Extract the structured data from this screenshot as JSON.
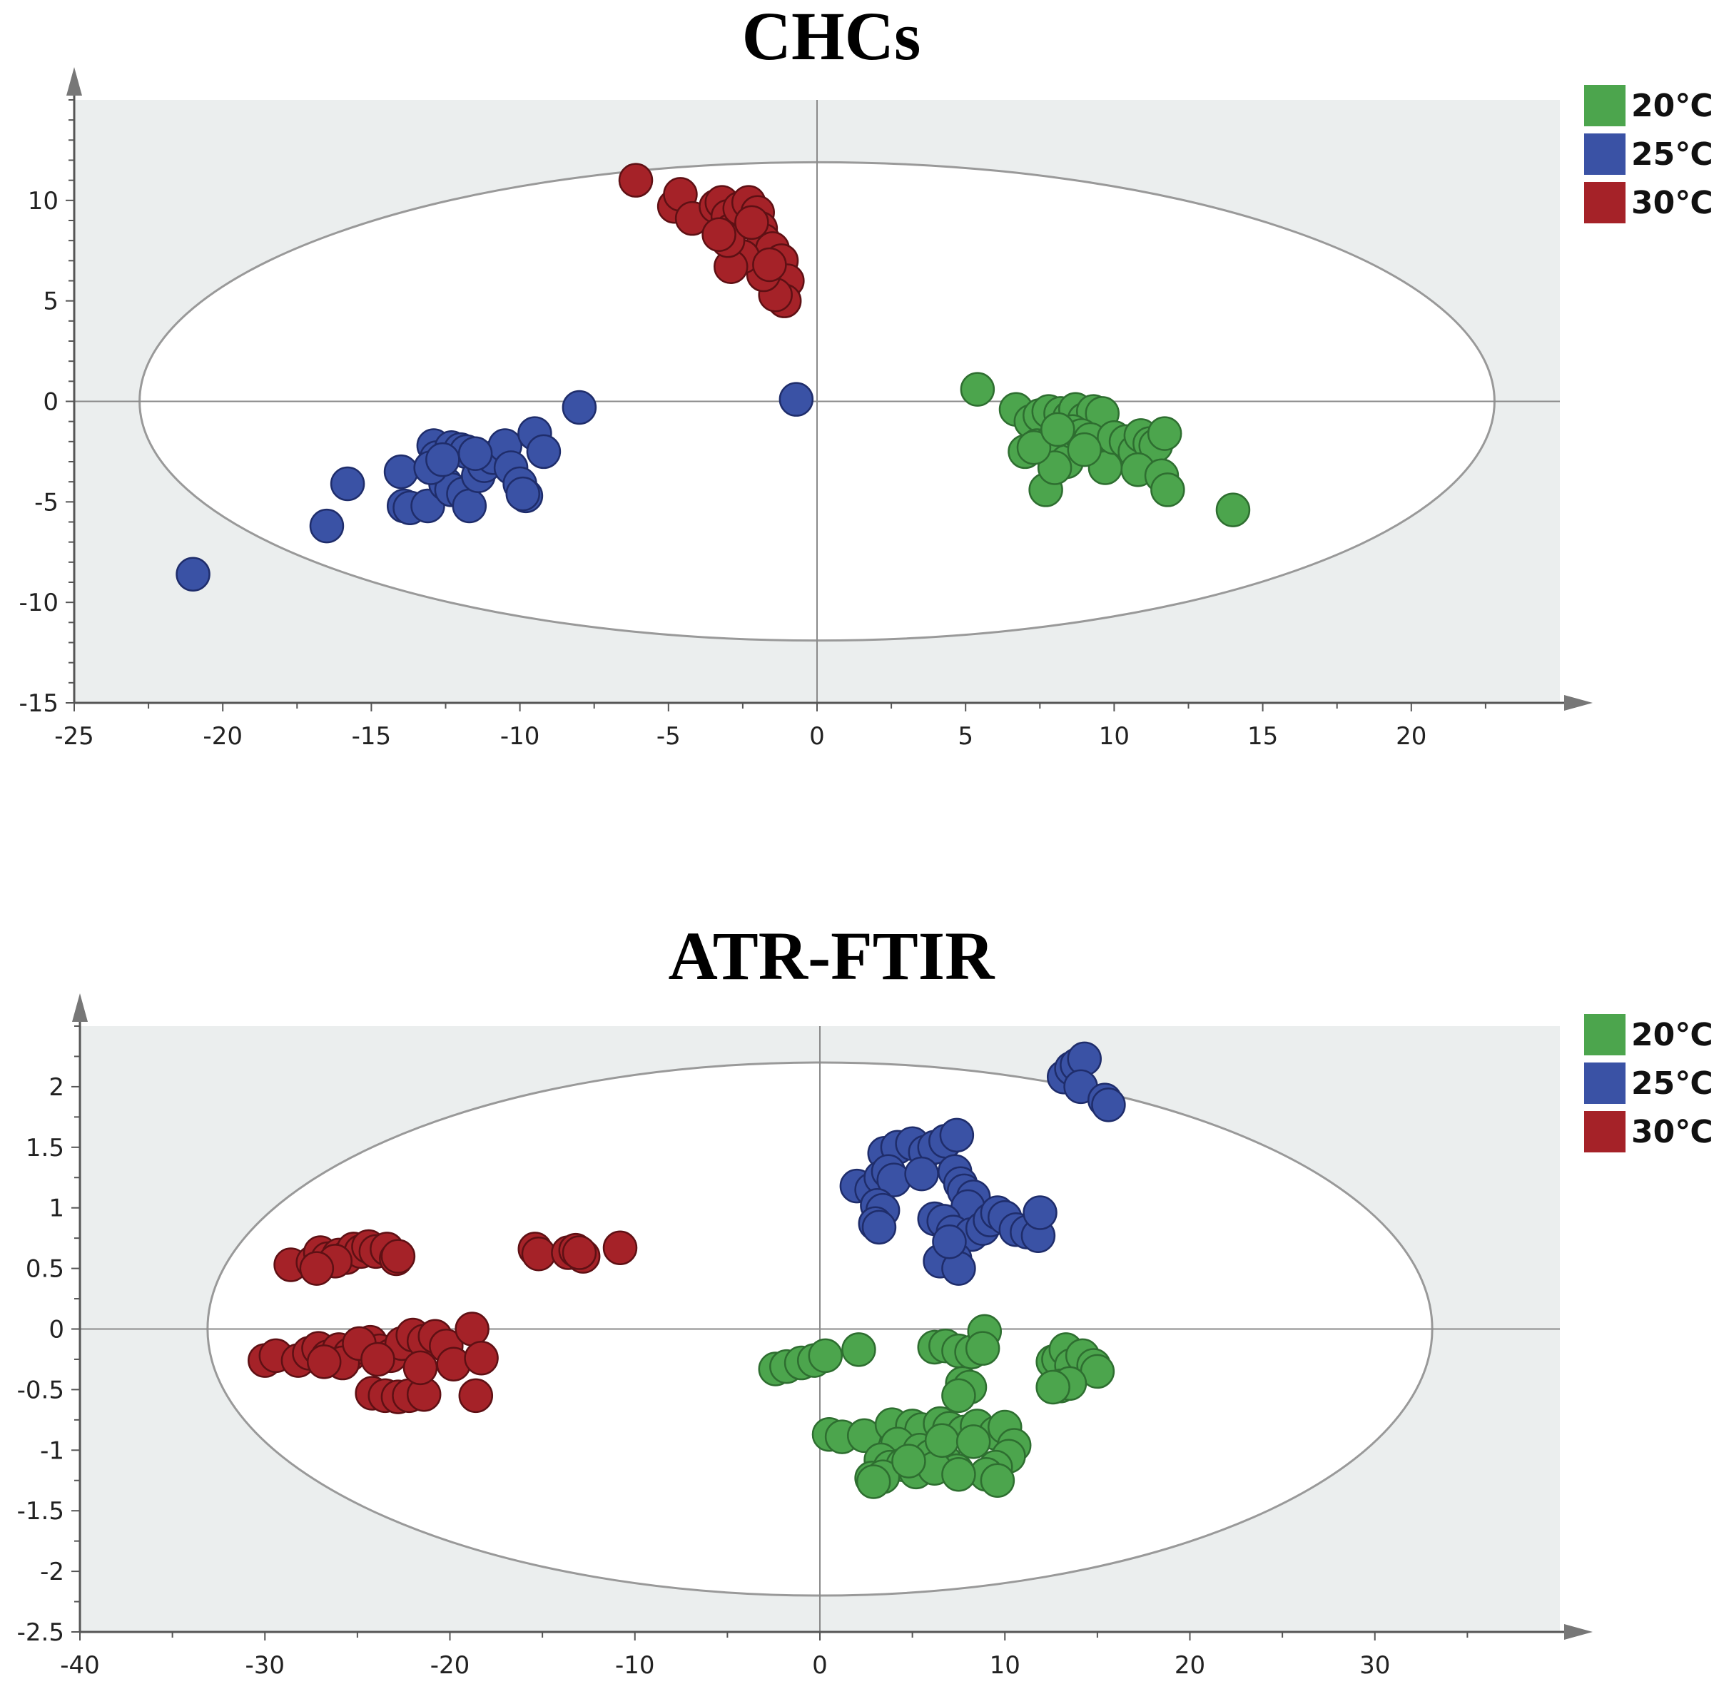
{
  "chart_data": [
    {
      "type": "scatter",
      "title": "CHCs",
      "xlabel": "",
      "ylabel": "",
      "xlim": [
        -25,
        25
      ],
      "ylim": [
        -15,
        15
      ],
      "xticks": [
        -25,
        -20,
        -15,
        -10,
        -5,
        0,
        5,
        10,
        15,
        20
      ],
      "yticks": [
        -15,
        -10,
        -5,
        0,
        5,
        10
      ],
      "ellipse": {
        "rx": 22.8,
        "ry": 11.9
      },
      "grid": false,
      "legend_position": "top-right",
      "series": [
        {
          "name": "20℃",
          "color": "#4ca54d",
          "points": [
            [
              5.4,
              0.6
            ],
            [
              6.7,
              -0.4
            ],
            [
              7.2,
              -1.0
            ],
            [
              7.5,
              -0.7
            ],
            [
              7.8,
              -0.5
            ],
            [
              8.2,
              -0.6
            ],
            [
              8.5,
              -0.8
            ],
            [
              8.7,
              -0.4
            ],
            [
              9.0,
              -0.9
            ],
            [
              9.3,
              -0.5
            ],
            [
              9.6,
              -0.6
            ],
            [
              7.0,
              -2.5
            ],
            [
              7.4,
              -2.2
            ],
            [
              7.9,
              -2.0
            ],
            [
              8.2,
              -2.6
            ],
            [
              8.4,
              -3.0
            ],
            [
              8.6,
              -1.5
            ],
            [
              8.9,
              -1.7
            ],
            [
              9.2,
              -1.9
            ],
            [
              9.7,
              -3.3
            ],
            [
              10.0,
              -1.8
            ],
            [
              10.4,
              -2.0
            ],
            [
              10.7,
              -2.5
            ],
            [
              10.9,
              -1.7
            ],
            [
              11.2,
              -2.1
            ],
            [
              11.4,
              -2.2
            ],
            [
              11.7,
              -1.6
            ],
            [
              10.8,
              -3.4
            ],
            [
              11.6,
              -3.7
            ],
            [
              11.8,
              -4.4
            ],
            [
              7.7,
              -4.4
            ],
            [
              14.0,
              -5.4
            ],
            [
              8.0,
              -3.3
            ],
            [
              9.0,
              -2.4
            ],
            [
              7.3,
              -2.3
            ],
            [
              8.1,
              -1.4
            ]
          ]
        },
        {
          "name": "25℃",
          "color": "#3a52a5",
          "points": [
            [
              -21.0,
              -8.6
            ],
            [
              -16.5,
              -6.2
            ],
            [
              -15.8,
              -4.1
            ],
            [
              -14.0,
              -3.5
            ],
            [
              -13.9,
              -5.2
            ],
            [
              -13.7,
              -5.3
            ],
            [
              -13.1,
              -5.2
            ],
            [
              -12.5,
              -4.1
            ],
            [
              -12.3,
              -4.4
            ],
            [
              -11.9,
              -4.6
            ],
            [
              -11.7,
              -5.2
            ],
            [
              -12.9,
              -2.2
            ],
            [
              -12.8,
              -2.8
            ],
            [
              -12.3,
              -2.3
            ],
            [
              -12.0,
              -2.4
            ],
            [
              -11.8,
              -2.5
            ],
            [
              -11.4,
              -3.7
            ],
            [
              -11.2,
              -3.2
            ],
            [
              -10.9,
              -2.8
            ],
            [
              -10.5,
              -2.2
            ],
            [
              -10.3,
              -3.3
            ],
            [
              -10.0,
              -4.1
            ],
            [
              -9.8,
              -4.7
            ],
            [
              -9.9,
              -4.6
            ],
            [
              -9.5,
              -1.6
            ],
            [
              -9.2,
              -2.5
            ],
            [
              -8.0,
              -0.3
            ],
            [
              -0.7,
              0.1
            ],
            [
              -13.0,
              -3.3
            ],
            [
              -11.5,
              -2.6
            ],
            [
              -12.6,
              -2.9
            ]
          ]
        },
        {
          "name": "30℃",
          "color": "#a52228",
          "points": [
            [
              -6.1,
              11.0
            ],
            [
              -4.8,
              9.7
            ],
            [
              -4.6,
              10.3
            ],
            [
              -4.2,
              9.1
            ],
            [
              -3.4,
              9.7
            ],
            [
              -3.2,
              9.9
            ],
            [
              -3.0,
              9.2
            ],
            [
              -2.9,
              8.5
            ],
            [
              -2.6,
              9.6
            ],
            [
              -2.3,
              9.9
            ],
            [
              -2.0,
              9.4
            ],
            [
              -1.9,
              8.6
            ],
            [
              -1.8,
              8.0
            ],
            [
              -1.5,
              7.6
            ],
            [
              -1.2,
              7.0
            ],
            [
              -1.0,
              6.0
            ],
            [
              -1.1,
              5.0
            ],
            [
              -1.4,
              5.3
            ],
            [
              -1.8,
              6.3
            ],
            [
              -2.5,
              7.2
            ],
            [
              -2.9,
              6.7
            ],
            [
              -3.0,
              8.0
            ],
            [
              -3.3,
              8.3
            ],
            [
              -2.2,
              8.9
            ],
            [
              -1.6,
              6.8
            ]
          ]
        }
      ]
    },
    {
      "type": "scatter",
      "title": "ATR-FTIR",
      "xlabel": "",
      "ylabel": "",
      "xlim": [
        -40,
        40
      ],
      "ylim": [
        -2.5,
        2.5
      ],
      "xticks": [
        -40,
        -30,
        -20,
        -10,
        0,
        10,
        20,
        30
      ],
      "yticks": [
        -2.5,
        -2,
        -1.5,
        -1,
        -0.5,
        0,
        0.5,
        1,
        1.5,
        2
      ],
      "ellipse": {
        "rx": 33.1,
        "ry": 2.2
      },
      "grid": false,
      "legend_position": "top-right",
      "series": [
        {
          "name": "20℃",
          "color": "#4ca54d",
          "points": [
            [
              -2.4,
              -0.33
            ],
            [
              -1.8,
              -0.31
            ],
            [
              -1.0,
              -0.28
            ],
            [
              -0.3,
              -0.26
            ],
            [
              0.3,
              -0.22
            ],
            [
              2.1,
              -0.17
            ],
            [
              6.2,
              -0.15
            ],
            [
              6.8,
              -0.14
            ],
            [
              7.5,
              -0.18
            ],
            [
              8.2,
              -0.19
            ],
            [
              8.9,
              -0.02
            ],
            [
              8.8,
              -0.16
            ],
            [
              7.7,
              -0.45
            ],
            [
              8.1,
              -0.48
            ],
            [
              7.5,
              -0.55
            ],
            [
              12.6,
              -0.27
            ],
            [
              12.9,
              -0.25
            ],
            [
              13.3,
              -0.17
            ],
            [
              13.6,
              -0.3
            ],
            [
              14.2,
              -0.22
            ],
            [
              14.8,
              -0.3
            ],
            [
              15.0,
              -0.35
            ],
            [
              13.0,
              -0.47
            ],
            [
              13.5,
              -0.45
            ],
            [
              12.6,
              -0.48
            ],
            [
              0.5,
              -0.87
            ],
            [
              1.2,
              -0.89
            ],
            [
              2.4,
              -0.88
            ],
            [
              3.9,
              -0.79
            ],
            [
              5.0,
              -0.8
            ],
            [
              5.5,
              -0.83
            ],
            [
              6.5,
              -0.78
            ],
            [
              7.0,
              -0.82
            ],
            [
              7.8,
              -0.85
            ],
            [
              8.5,
              -0.8
            ],
            [
              9.5,
              -0.86
            ],
            [
              10.0,
              -0.81
            ],
            [
              10.5,
              -0.96
            ],
            [
              10.2,
              -1.05
            ],
            [
              9.5,
              -1.14
            ],
            [
              9.0,
              -1.2
            ],
            [
              9.6,
              -1.25
            ],
            [
              4.2,
              -0.95
            ],
            [
              5.4,
              -1.0
            ],
            [
              6.0,
              -1.05
            ],
            [
              6.8,
              -1.1
            ],
            [
              7.4,
              -1.17
            ],
            [
              3.3,
              -1.08
            ],
            [
              3.8,
              -1.14
            ],
            [
              4.5,
              -1.12
            ],
            [
              5.2,
              -1.18
            ],
            [
              2.8,
              -1.23
            ],
            [
              3.4,
              -1.22
            ],
            [
              6.2,
              -1.15
            ],
            [
              7.5,
              -1.2
            ],
            [
              2.9,
              -1.26
            ],
            [
              4.8,
              -1.09
            ],
            [
              6.6,
              -0.92
            ],
            [
              8.3,
              -0.93
            ]
          ]
        },
        {
          "name": "25℃",
          "color": "#3a52a5",
          "points": [
            [
              13.2,
              2.08
            ],
            [
              13.6,
              2.15
            ],
            [
              13.9,
              2.18
            ],
            [
              14.3,
              2.23
            ],
            [
              14.1,
              2.0
            ],
            [
              15.4,
              1.89
            ],
            [
              15.6,
              1.85
            ],
            [
              3.5,
              1.45
            ],
            [
              4.2,
              1.5
            ],
            [
              5.0,
              1.53
            ],
            [
              5.7,
              1.46
            ],
            [
              6.2,
              1.5
            ],
            [
              6.8,
              1.55
            ],
            [
              7.4,
              1.6
            ],
            [
              7.3,
              1.3
            ],
            [
              7.6,
              1.2
            ],
            [
              7.8,
              1.14
            ],
            [
              8.3,
              1.09
            ],
            [
              8.0,
              1.01
            ],
            [
              2.0,
              1.18
            ],
            [
              2.8,
              1.15
            ],
            [
              3.3,
              1.25
            ],
            [
              3.7,
              1.3
            ],
            [
              4.0,
              1.23
            ],
            [
              5.5,
              1.28
            ],
            [
              3.1,
              1.02
            ],
            [
              3.4,
              0.98
            ],
            [
              3.0,
              0.87
            ],
            [
              3.2,
              0.84
            ],
            [
              6.2,
              0.91
            ],
            [
              6.7,
              0.89
            ],
            [
              7.2,
              0.8
            ],
            [
              8.2,
              0.78
            ],
            [
              8.8,
              0.83
            ],
            [
              9.2,
              0.9
            ],
            [
              9.6,
              0.96
            ],
            [
              10.0,
              0.92
            ],
            [
              10.6,
              0.82
            ],
            [
              11.2,
              0.8
            ],
            [
              11.8,
              0.77
            ],
            [
              11.9,
              0.96
            ],
            [
              7.0,
              0.62
            ],
            [
              7.3,
              0.58
            ],
            [
              6.5,
              0.56
            ],
            [
              7.5,
              0.5
            ],
            [
              7.0,
              0.72
            ]
          ]
        },
        {
          "name": "30℃",
          "color": "#a52228",
          "points": [
            [
              -28.6,
              0.53
            ],
            [
              -27.4,
              0.55
            ],
            [
              -27.0,
              0.63
            ],
            [
              -26.6,
              0.58
            ],
            [
              -26.0,
              0.61
            ],
            [
              -25.6,
              0.59
            ],
            [
              -25.2,
              0.66
            ],
            [
              -24.8,
              0.64
            ],
            [
              -24.4,
              0.68
            ],
            [
              -24.0,
              0.64
            ],
            [
              -23.4,
              0.66
            ],
            [
              -22.9,
              0.58
            ],
            [
              -22.8,
              0.6
            ],
            [
              -26.2,
              0.56
            ],
            [
              -27.2,
              0.5
            ],
            [
              -15.4,
              0.66
            ],
            [
              -15.2,
              0.62
            ],
            [
              -13.6,
              0.63
            ],
            [
              -13.2,
              0.65
            ],
            [
              -12.8,
              0.6
            ],
            [
              -13.0,
              0.63
            ],
            [
              -10.8,
              0.67
            ],
            [
              -30.0,
              -0.26
            ],
            [
              -29.4,
              -0.22
            ],
            [
              -28.2,
              -0.26
            ],
            [
              -27.6,
              -0.2
            ],
            [
              -27.1,
              -0.16
            ],
            [
              -26.6,
              -0.23
            ],
            [
              -26.0,
              -0.17
            ],
            [
              -25.4,
              -0.21
            ],
            [
              -24.8,
              -0.15
            ],
            [
              -24.3,
              -0.11
            ],
            [
              -23.8,
              -0.18
            ],
            [
              -23.2,
              -0.22
            ],
            [
              -22.6,
              -0.12
            ],
            [
              -22.0,
              -0.05
            ],
            [
              -21.4,
              -0.1
            ],
            [
              -20.8,
              -0.06
            ],
            [
              -20.2,
              -0.14
            ],
            [
              -19.8,
              -0.29
            ],
            [
              -18.8,
              0.0
            ],
            [
              -18.3,
              -0.24
            ],
            [
              -24.2,
              -0.53
            ],
            [
              -23.5,
              -0.55
            ],
            [
              -22.8,
              -0.56
            ],
            [
              -22.2,
              -0.55
            ],
            [
              -21.4,
              -0.54
            ],
            [
              -18.6,
              -0.55
            ],
            [
              -25.8,
              -0.28
            ],
            [
              -24.9,
              -0.12
            ],
            [
              -21.6,
              -0.32
            ],
            [
              -23.9,
              -0.25
            ],
            [
              -26.8,
              -0.27
            ]
          ]
        }
      ]
    }
  ]
}
